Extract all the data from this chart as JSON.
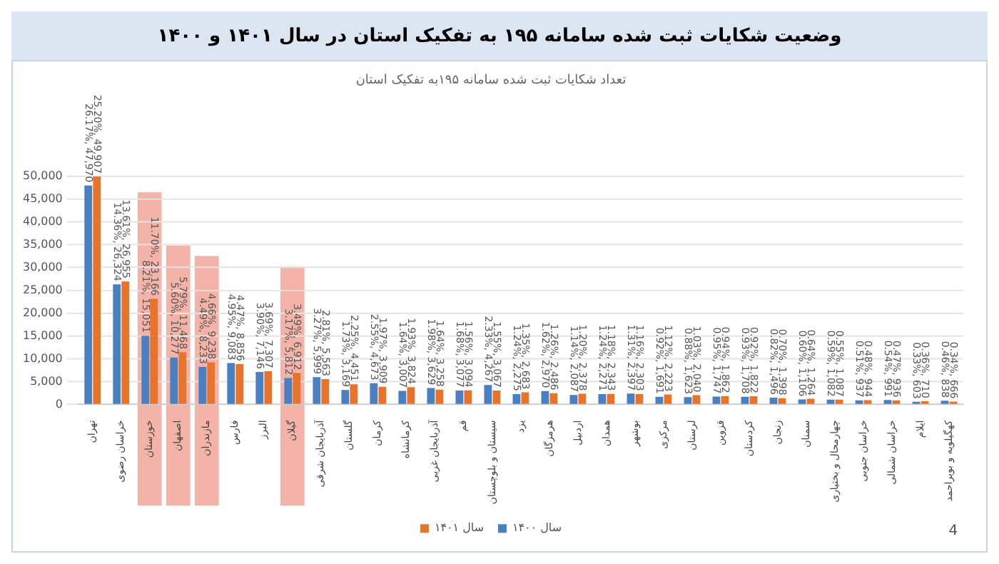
{
  "chart_data": {
    "type": "bar",
    "title": "وضعیت شکایات ثبت شده سامانه ۱۹۵ به تفکیک استان در سال ۱۴۰۱ و ۱۴۰۰",
    "subtitle": "تعداد شکایات ثبت شده سامانه ۱۹۵به تفکیک استان",
    "categories": [
      "تهران",
      "خراسان رضوی",
      "خوزستان",
      "اصفهان",
      "مازندران",
      "فارس",
      "البرز",
      "گیلان",
      "آذربایجان شرقی",
      "گلستان",
      "کرمان",
      "کرمانشاه",
      "آذربایجان غربی",
      "قم",
      "سیستان و بلوچستان",
      "یزد",
      "هرمزگان",
      "اردبیل",
      "همدان",
      "بوشهر",
      "مرکزی",
      "لرستان",
      "قزوین",
      "کردستان",
      "زنجان",
      "سمنان",
      "چهارمحال و بختیاری",
      "خراسان جنوبی",
      "خراسان شمالی",
      "ایلام",
      "کهگیلویه و بویراحمد"
    ],
    "series": [
      {
        "name": "سال ۱۴۰۰",
        "color": "#4a7fc1",
        "values": [
          47970,
          26324,
          15051,
          10277,
          8233,
          9083,
          7146,
          5812,
          5999,
          3169,
          4673,
          3007,
          3629,
          3077,
          4267,
          2275,
          2970,
          2087,
          2271,
          2397,
          1691,
          1623,
          1747,
          1708,
          1496,
          1106,
          1082,
          937,
          991,
          603,
          838
        ],
        "value_labels": [
          "26.17%, 47,970",
          "14.36%, 26,324",
          "8.21%, 15,051",
          "5.60%, 10,277",
          "4.49%, 8,233",
          "4.95%, 9,083",
          "3.90%, 7,146",
          "3.17%, 5,812",
          "3.27%, 5,999",
          "1.73%, 3,169",
          "2.55%, 4,673",
          "1.64%, 3,007",
          "1.98%, 3,629",
          "1.68%, 3,077",
          "2.33%, 4,267",
          "1.24%, 2,275",
          "1.62%, 2,970",
          "1.14%, 2,087",
          "1.24%, 2,271",
          "1.31%, 2,397",
          "0.92%, 1,691",
          "0.88%, 1,623",
          "0.95%, 1,747",
          "0.93%, 1,708",
          "0.82%, 1,496",
          "0.60%, 1,106",
          "0.59%, 1,082",
          "0.51%, 937",
          "0.54%, 991",
          "0.33%, 603",
          "0.46%, 838"
        ]
      },
      {
        "name": "سال ۱۴۰۱",
        "color": "#e8742b",
        "values": [
          49907,
          26955,
          23166,
          11468,
          9238,
          8856,
          7307,
          6912,
          5563,
          4451,
          3909,
          3824,
          3258,
          3094,
          3067,
          2683,
          2486,
          2378,
          2343,
          2303,
          2223,
          2040,
          1862,
          1822,
          1398,
          1264,
          1087,
          944,
          936,
          710,
          666
        ],
        "value_labels": [
          "25.20%, 49,907",
          "13.61%, 26,955",
          "11.70%, 23,166",
          "5.79%, 11,468",
          "4.66%, 9,238",
          "4.47%, 8,856",
          "3.69%, 7,307",
          "3.49%, 6,912",
          "2.81%, 5,563",
          "2.25%, 4,451",
          "1.97%, 3,909",
          "1.93%, 3,824",
          "1.64%, 3,258",
          "1.56%, 3,094",
          "1.55%, 3,067",
          "1.35%, 2,683",
          "1.26%, 2,486",
          "1.20%, 2,378",
          "1.18%, 2,343",
          "1.16%, 2,303",
          "1.12%, 2,223",
          "1.03%, 2,040",
          "0.94%, 1,862",
          "0.92%, 1,822",
          "0.70%, 1,398",
          "0.64%, 1,264",
          "0.55%, 1,087",
          "0.48%, 944",
          "0.47%, 936",
          "0.36%, 710",
          "0.34%, 666"
        ]
      }
    ],
    "ylim": [
      0,
      50000
    ],
    "yticks": [
      0,
      {
        "value": 5000,
        "label": "5,000"
      },
      {
        "value": 10000,
        "label": "10,000"
      },
      {
        "value": 15000,
        "label": "15,000"
      },
      {
        "value": 20000,
        "label": "20,000"
      },
      {
        "value": 25000,
        "label": "25,000"
      },
      {
        "value": 30000,
        "label": "30,000"
      },
      {
        "value": 35000,
        "label": "35,000"
      },
      {
        "value": 40000,
        "label": "40,000"
      },
      {
        "value": 45000,
        "label": "45,000"
      },
      {
        "value": 50000,
        "label": "50,000"
      }
    ],
    "grid": "y",
    "legend": "bottom",
    "bands": [
      {
        "axis": "x",
        "from": "خوزستان",
        "to": "خوزستان",
        "color": "#f4b3a8"
      },
      {
        "axis": "x",
        "from": "اصفهان",
        "to": "اصفهان",
        "color": "#f4b3a8"
      },
      {
        "axis": "x",
        "from": "مازندران",
        "to": "مازندران",
        "color": "#f4b3a8"
      },
      {
        "axis": "x",
        "from": "گیلان",
        "to": "گیلان",
        "color": "#f4b3a8"
      }
    ],
    "annotations": [
      "4"
    ]
  }
}
